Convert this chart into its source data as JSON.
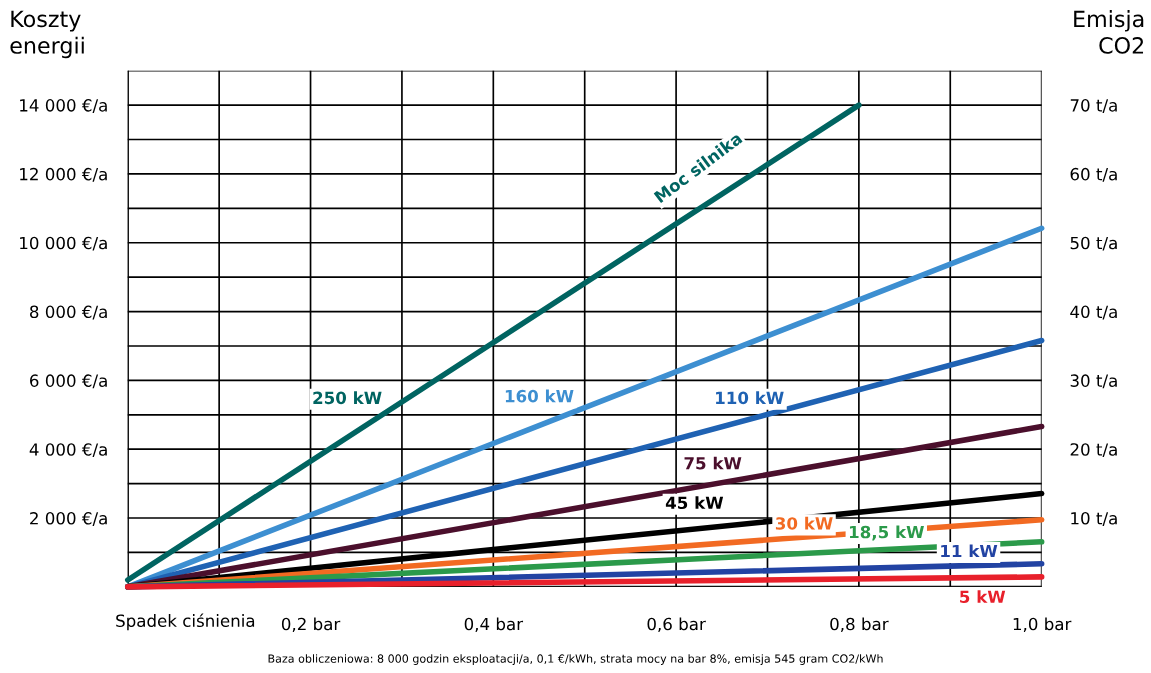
{
  "chart_data": {
    "type": "line",
    "ylabel": "Koszty\nenergii",
    "y2label": "Emisja\nCO2",
    "xlabel": "Spadek ciśnienia",
    "x": [
      0,
      1.0
    ],
    "series": [
      {
        "name": "250 kW",
        "color": "#006461",
        "x": [
          0,
          0.8
        ],
        "values": [
          200,
          14000
        ]
      },
      {
        "name": "160 kW",
        "color": "#3d8fd1",
        "values": [
          0,
          10420
        ]
      },
      {
        "name": "110 kW",
        "color": "#1f62b3",
        "values": [
          0,
          7160
        ]
      },
      {
        "name": "75 kW",
        "color": "#4b0f2c",
        "values": [
          0,
          4660
        ]
      },
      {
        "name": "45 kW",
        "color": "#000000",
        "values": [
          0,
          2710
        ]
      },
      {
        "name": "30 kW",
        "color": "#f26a22",
        "values": [
          0,
          1950
        ]
      },
      {
        "name": "18,5 kW",
        "color": "#2b9a4a",
        "values": [
          0,
          1310
        ]
      },
      {
        "name": "11 kW",
        "color": "#2243a3",
        "values": [
          0,
          670
        ]
      },
      {
        "name": "5 kW",
        "color": "#e8202b",
        "values": [
          0,
          290
        ]
      }
    ],
    "xlim": [
      0,
      1.0
    ],
    "xticks": [
      {
        "value": 0,
        "label": null
      },
      {
        "value": 0.1,
        "label": null
      },
      {
        "value": 0.2,
        "label": "0,2 bar"
      },
      {
        "value": 0.3,
        "label": null
      },
      {
        "value": 0.4,
        "label": "0,4 bar"
      },
      {
        "value": 0.5,
        "label": null
      },
      {
        "value": 0.6,
        "label": "0,6 bar"
      },
      {
        "value": 0.7,
        "label": null
      },
      {
        "value": 0.8,
        "label": "0,8 bar"
      },
      {
        "value": 0.9,
        "label": null
      },
      {
        "value": 1.0,
        "label": "1,0 bar"
      }
    ],
    "ylim": [
      0,
      15000
    ],
    "yticks": [
      {
        "value": 0,
        "label": null
      },
      {
        "value": 1000,
        "label": null
      },
      {
        "value": 2000,
        "label": "2 000 €/a"
      },
      {
        "value": 3000,
        "label": null
      },
      {
        "value": 4000,
        "label": "4 000 €/a"
      },
      {
        "value": 5000,
        "label": null
      },
      {
        "value": 6000,
        "label": "6 000 €/a"
      },
      {
        "value": 7000,
        "label": null
      },
      {
        "value": 8000,
        "label": "8 000 €/a"
      },
      {
        "value": 9000,
        "label": null
      },
      {
        "value": 10000,
        "label": "10 000 €/a"
      },
      {
        "value": 11000,
        "label": null
      },
      {
        "value": 12000,
        "label": "12 000 €/a"
      },
      {
        "value": 13000,
        "label": null
      },
      {
        "value": 14000,
        "label": "14 000 €/a"
      },
      {
        "value": 15000,
        "label": null
      }
    ],
    "y2lim": [
      0,
      75
    ],
    "y2ticks": [
      {
        "value": 10,
        "label": "10 t/a"
      },
      {
        "value": 20,
        "label": "20 t/a"
      },
      {
        "value": 30,
        "label": "30 t/a"
      },
      {
        "value": 40,
        "label": "40 t/a"
      },
      {
        "value": 50,
        "label": "50 t/a"
      },
      {
        "value": 60,
        "label": "60 t/a"
      },
      {
        "value": 70,
        "label": "70 t/a"
      }
    ],
    "annotations": [
      "Moc silnika",
      "Baza obliczeniowa: 8 000 godzin eksploatacji/a, 0,1 €/kWh, strata mocy na bar 8%, emisja 545 gram CO2/kWh"
    ],
    "grid": true,
    "legend": false,
    "line_style": "solid",
    "marker": "none"
  }
}
